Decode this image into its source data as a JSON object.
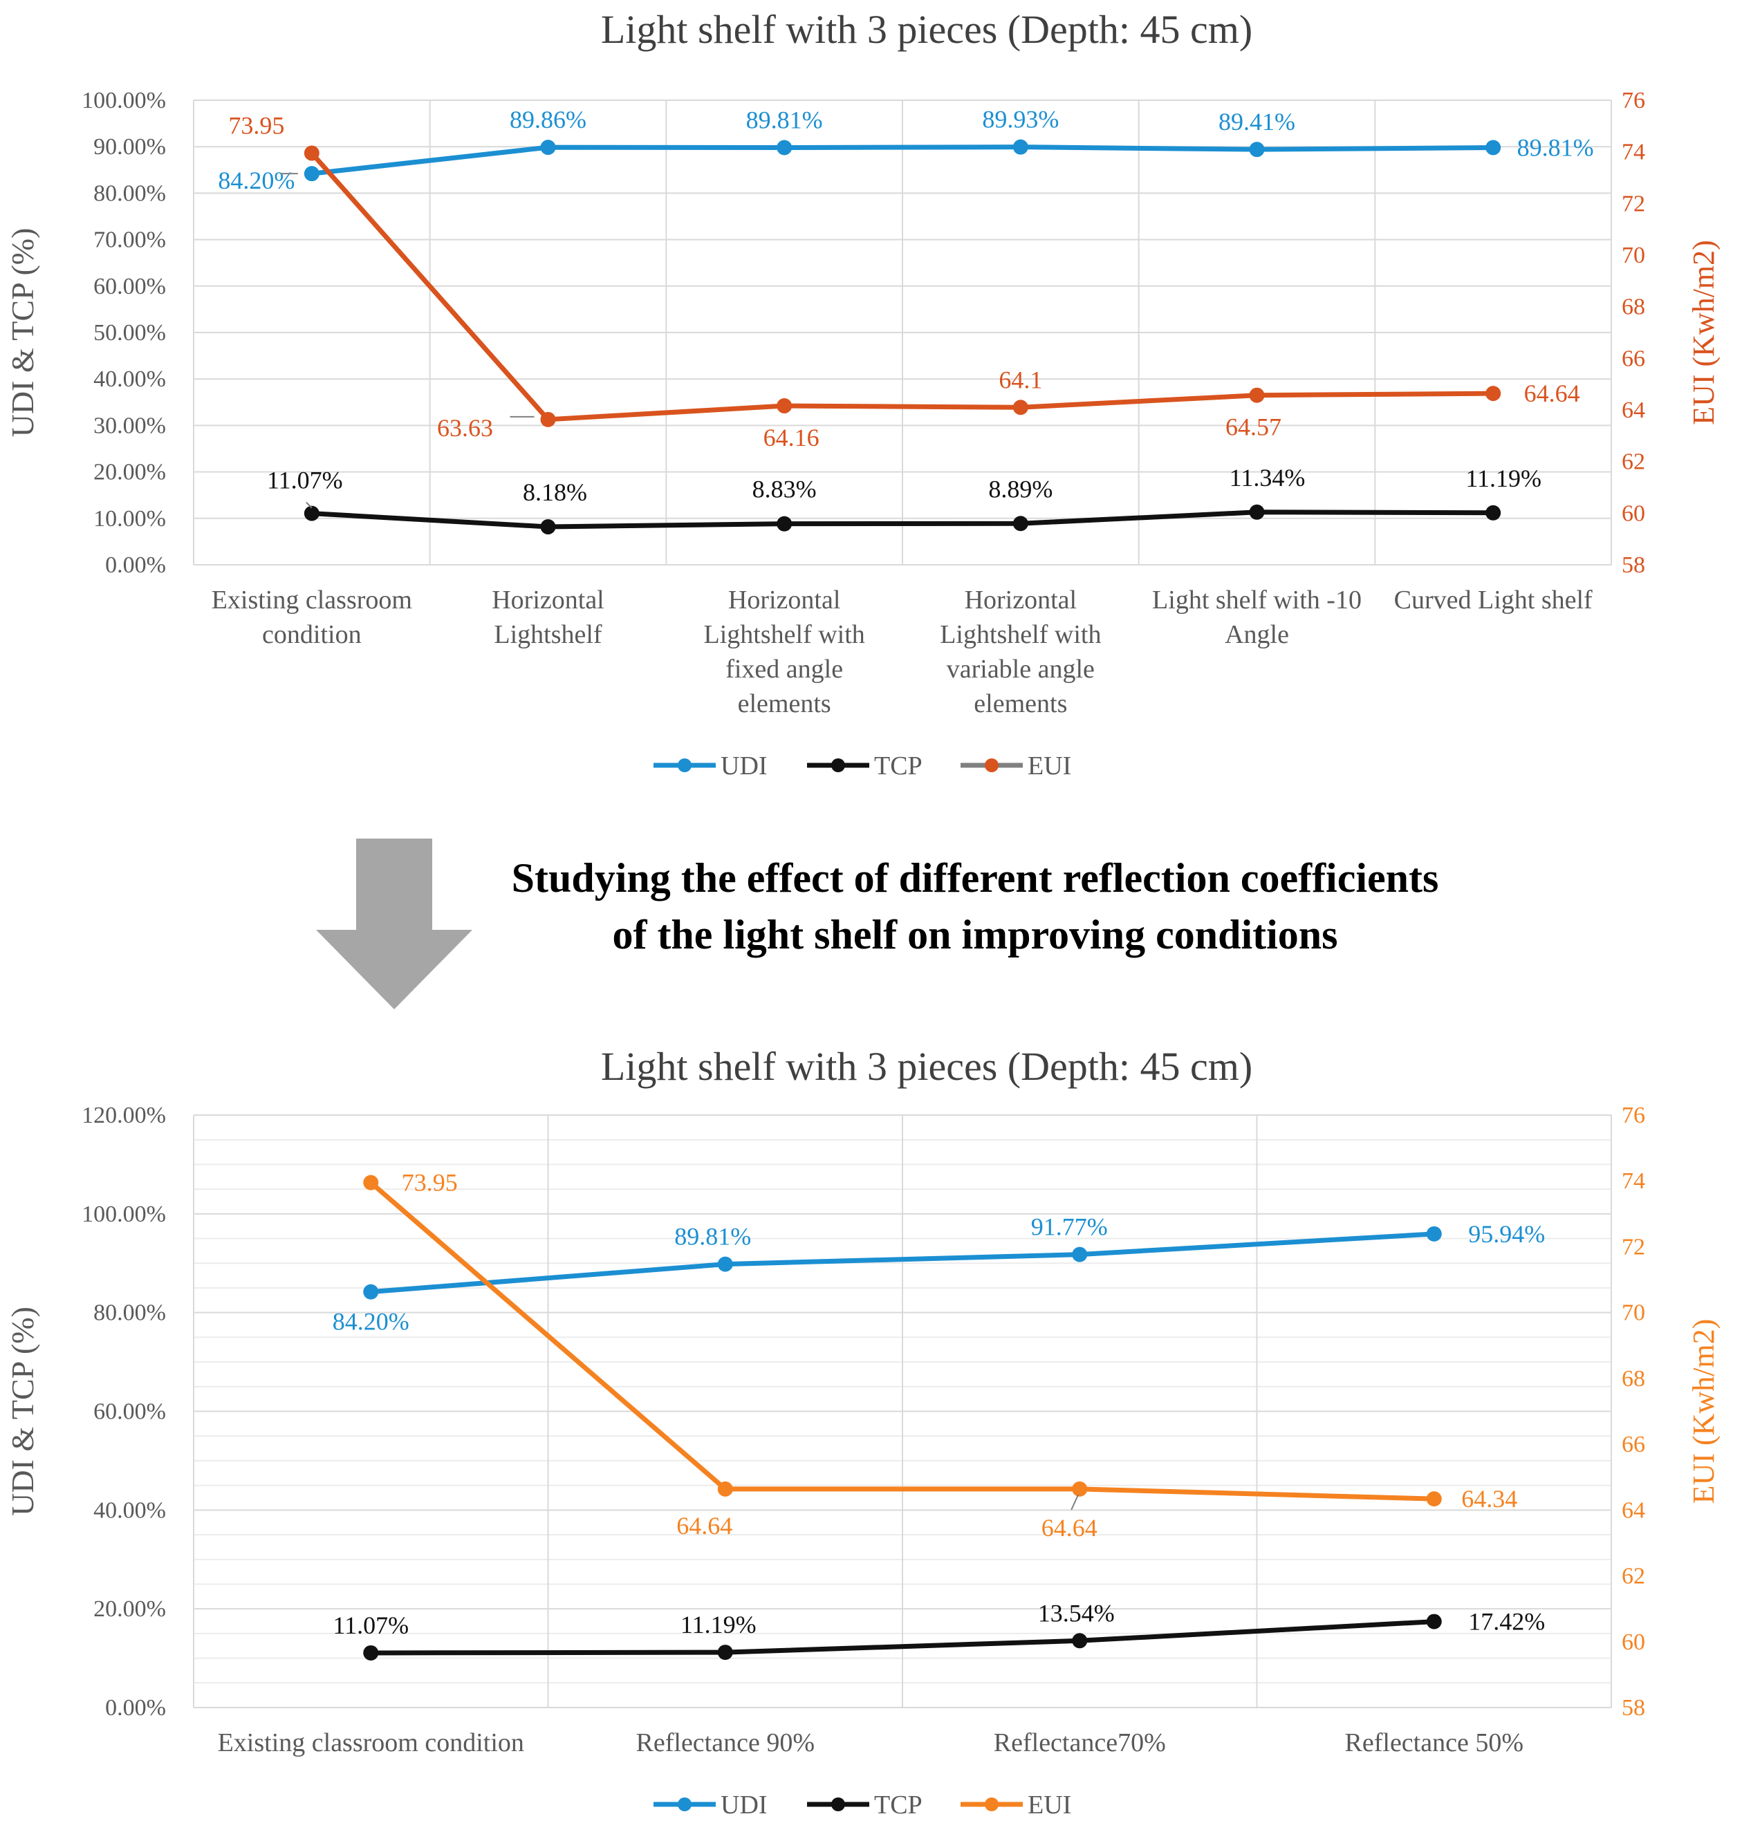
{
  "colors": {
    "udi": "#1b8fd2",
    "tcp": "#111111",
    "eui_top": "#d9531e",
    "eui_bottom": "#f58220",
    "arrow": "#a6a6a6",
    "grid": "#d9d9d9",
    "axis_text": "#595959"
  },
  "middle_text": {
    "line1": "Studying the effect of different reflection coefficients",
    "line2": "of the light shelf on improving conditions"
  },
  "chart_data": [
    {
      "type": "line",
      "title": "Light shelf with 3 pieces (Depth: 45 cm)",
      "ylabel": "UDI & TCP (%)",
      "y2label": "EUI (Kwh/m2)",
      "ylim": [
        0,
        100
      ],
      "y2lim": [
        58,
        76
      ],
      "y_ticks": [
        "0.00%",
        "10.00%",
        "20.00%",
        "30.00%",
        "40.00%",
        "50.00%",
        "60.00%",
        "70.00%",
        "80.00%",
        "90.00%",
        "100.00%"
      ],
      "y2_ticks": [
        "58",
        "60",
        "62",
        "64",
        "66",
        "68",
        "70",
        "72",
        "74",
        "76"
      ],
      "categories": [
        [
          "Existing classroom",
          "condition"
        ],
        [
          "Horizontal",
          "Lightshelf"
        ],
        [
          "Horizontal",
          "Lightshelf with",
          "fixed angle",
          "elements"
        ],
        [
          "Horizontal",
          "Lightshelf with",
          "variable angle",
          "elements"
        ],
        [
          "Light shelf with -10",
          "Angle"
        ],
        [
          "Curved Light shelf"
        ]
      ],
      "series": [
        {
          "name": "UDI",
          "axis": "left",
          "values": [
            84.2,
            89.86,
            89.81,
            89.93,
            89.41,
            89.81
          ],
          "labels": [
            "84.20%",
            "89.86%",
            "89.81%",
            "89.93%",
            "89.41%",
            "89.81%"
          ]
        },
        {
          "name": "TCP",
          "axis": "left",
          "values": [
            11.07,
            8.18,
            8.83,
            8.89,
            11.34,
            11.19
          ],
          "labels": [
            "11.07%",
            "8.18%",
            "8.83%",
            "8.89%",
            "11.34%",
            "11.19%"
          ]
        },
        {
          "name": "EUI",
          "axis": "right",
          "values": [
            73.95,
            63.63,
            64.16,
            64.1,
            64.57,
            64.64
          ],
          "labels": [
            "73.95",
            "63.63",
            "64.16",
            "64.1",
            "64.57",
            "64.64"
          ]
        }
      ],
      "legend": [
        "UDI",
        "TCP",
        "EUI"
      ],
      "legend_position": "bottom"
    },
    {
      "type": "line",
      "title": "Light shelf with 3 pieces (Depth: 45 cm)",
      "ylabel": "UDI & TCP (%)",
      "y2label": "EUI (Kwh/m2)",
      "ylim": [
        0,
        120
      ],
      "y2lim": [
        58,
        76
      ],
      "y_ticks": [
        "0.00%",
        "20.00%",
        "40.00%",
        "60.00%",
        "80.00%",
        "100.00%",
        "120.00%"
      ],
      "y2_ticks": [
        "58",
        "60",
        "62",
        "64",
        "66",
        "68",
        "70",
        "72",
        "74",
        "76"
      ],
      "categories": [
        [
          "Existing classroom condition"
        ],
        [
          "Reflectance 90%"
        ],
        [
          "Reflectance70%"
        ],
        [
          "Reflectance 50%"
        ]
      ],
      "series": [
        {
          "name": "UDI",
          "axis": "left",
          "values": [
            84.2,
            89.81,
            91.77,
            95.94
          ],
          "labels": [
            "84.20%",
            "89.81%",
            "91.77%",
            "95.94%"
          ]
        },
        {
          "name": "TCP",
          "axis": "left",
          "values": [
            11.07,
            11.19,
            13.54,
            17.42
          ],
          "labels": [
            "11.07%",
            "11.19%",
            "13.54%",
            "17.42%"
          ]
        },
        {
          "name": "EUI",
          "axis": "right",
          "values": [
            73.95,
            64.64,
            64.64,
            64.34
          ],
          "labels": [
            "73.95",
            "64.64",
            "64.64",
            "64.34"
          ]
        }
      ],
      "legend": [
        "UDI",
        "TCP",
        "EUI"
      ],
      "legend_position": "bottom"
    }
  ]
}
